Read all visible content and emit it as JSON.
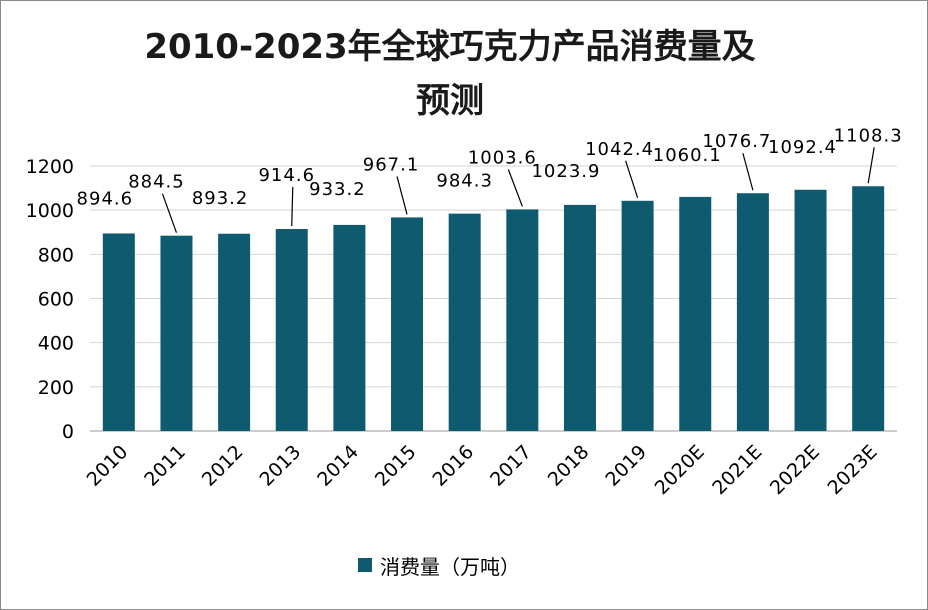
{
  "chart_data": {
    "type": "bar",
    "title_line1": "2010-2023年全球巧克力产品消费量及",
    "title_line2": "预测",
    "categories": [
      "2010",
      "2011",
      "2012",
      "2013",
      "2014",
      "2015",
      "2016",
      "2017",
      "2018",
      "2019",
      "2020E",
      "2021E",
      "2022E",
      "2023E"
    ],
    "series": [
      {
        "name": "消费量（万吨）",
        "values": [
          894.6,
          884.5,
          893.2,
          914.6,
          933.2,
          967.1,
          984.3,
          1003.6,
          1023.9,
          1042.4,
          1060.1,
          1076.7,
          1092.4,
          1108.3
        ],
        "color": "#0e5a6f"
      }
    ],
    "data_labels": [
      "894.6",
      "884.5",
      "893.2",
      "914.6",
      "933.2",
      "967.1",
      "984.3",
      "1003.6",
      "1023.9",
      "1042.4",
      "1060.1",
      "1076.7",
      "1092.4",
      "1108.3"
    ],
    "y_ticks": [
      "0",
      "200",
      "400",
      "600",
      "800",
      "1000",
      "1200"
    ],
    "ylim": [
      0,
      1200
    ],
    "grid": true,
    "legend_position": "bottom"
  }
}
